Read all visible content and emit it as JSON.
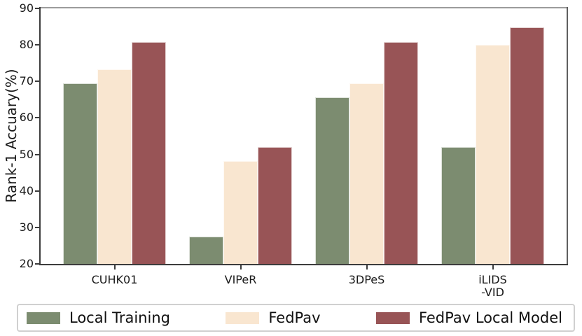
{
  "chart_data": {
    "type": "bar",
    "title": "",
    "xlabel": "",
    "ylabel": "Rank-1 Accuary(%)",
    "ylim": [
      20,
      90
    ],
    "yticks": [
      20,
      30,
      40,
      50,
      60,
      70,
      80,
      90
    ],
    "grid": false,
    "legend_position": "bottom",
    "categories": [
      "CUHK01",
      "VIPeR",
      "3DPeS",
      "iLIDS\n-VID"
    ],
    "series": [
      {
        "name": "Local Training",
        "color": "#7c8c70",
        "values": [
          69.4,
          27.5,
          65.7,
          52.0
        ]
      },
      {
        "name": "FedPav",
        "color": "#f9e6d0",
        "values": [
          73.4,
          48.2,
          69.4,
          80.0
        ]
      },
      {
        "name": "FedPav Local Model",
        "color": "#985456",
        "values": [
          80.7,
          52.0,
          80.7,
          84.8
        ]
      }
    ]
  },
  "colors": {
    "axis_text": "#1a1a1a",
    "spine_dark": "#3c3c3c",
    "spine_light": "#9b9b9b",
    "legend_border": "#d0d0d0",
    "background": "#ffffff"
  }
}
